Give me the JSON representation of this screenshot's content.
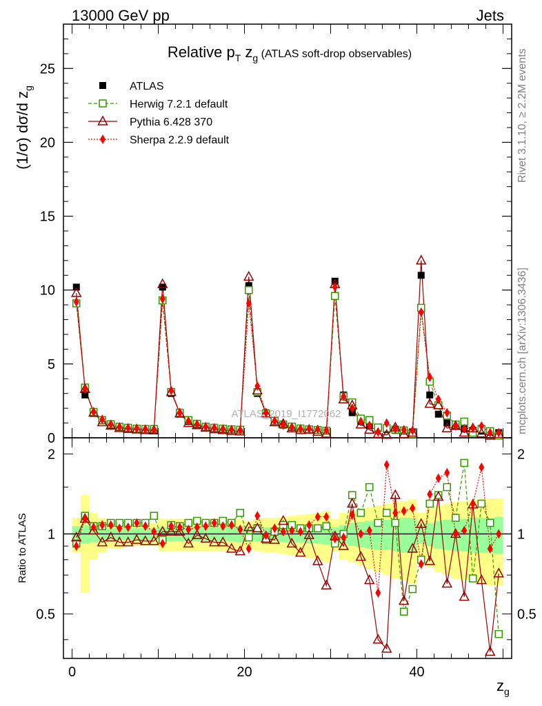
{
  "header": {
    "left": "13000 GeV pp",
    "right": "Jets"
  },
  "side_text": {
    "rivet": "Rivet 3.1.10, ≥ 2.2M events",
    "mcplots": "mcplots.cern.ch [arXiv:1306.3436]"
  },
  "watermark": "ATLAS_2019_I1772062",
  "colors": {
    "atlas": "#000000",
    "herwig": "#339900",
    "pythia": "#990000",
    "sherpa": "#ff0000",
    "band_inner": "#99ff99",
    "band_outer": "#ffff88"
  },
  "chart_data": [
    {
      "type": "scatter",
      "title_parts": {
        "main": "Relative p",
        "sub": "T",
        "mid": " z",
        "sub2": "g",
        "tail": " (ATLAS soft-drop observables)"
      },
      "ylabel": "(1/σ) dσ/d z",
      "ylabel_sub": "g",
      "xlim": [
        -1,
        51
      ],
      "ylim": [
        0,
        28
      ],
      "yticks": [
        0,
        5,
        10,
        15,
        20,
        25
      ],
      "grid": false,
      "legend_position": "top-left",
      "x": [
        0.5,
        1.5,
        2.5,
        3.5,
        4.5,
        5.5,
        6.5,
        7.5,
        8.5,
        9.5,
        10.5,
        11.5,
        12.5,
        13.5,
        14.5,
        15.5,
        16.5,
        17.5,
        18.5,
        19.5,
        20.5,
        21.5,
        22.5,
        23.5,
        24.5,
        25.5,
        26.5,
        27.5,
        28.5,
        29.5,
        30.5,
        31.5,
        32.5,
        33.5,
        34.5,
        35.5,
        36.5,
        37.5,
        38.5,
        39.5,
        40.5,
        41.5,
        42.5,
        43.5,
        44.5,
        45.5,
        46.5,
        47.5,
        48.5,
        49.5
      ],
      "series": [
        {
          "name": "ATLAS",
          "style": "filled-square",
          "values": [
            10.2,
            2.9,
            1.65,
            1.15,
            0.85,
            0.7,
            0.63,
            0.58,
            0.55,
            0.52,
            10.2,
            3.0,
            1.6,
            1.1,
            0.85,
            0.7,
            0.62,
            0.56,
            0.52,
            0.5,
            10.3,
            3.0,
            1.7,
            1.1,
            0.85,
            0.7,
            0.6,
            0.55,
            0.5,
            0.45,
            10.6,
            2.9,
            1.7,
            1.1,
            0.82,
            0.65,
            0.55,
            0.5,
            0.45,
            0.4,
            11.0,
            2.9,
            1.6,
            1.0,
            0.8,
            0.6,
            0.5,
            0.45,
            0.4,
            0.35
          ]
        },
        {
          "name": "Herwig 7.2.1 default",
          "style": "open-square-dashed",
          "values": [
            9.1,
            3.4,
            1.75,
            1.2,
            0.92,
            0.75,
            0.68,
            0.62,
            0.6,
            0.6,
            9.3,
            3.1,
            1.7,
            1.2,
            0.95,
            0.75,
            0.68,
            0.62,
            0.57,
            0.55,
            10.0,
            3.1,
            1.65,
            1.15,
            0.9,
            0.76,
            0.63,
            0.57,
            0.53,
            0.48,
            9.6,
            2.8,
            2.4,
            1.3,
            1.2,
            0.7,
            0.65,
            0.55,
            0.5,
            0.25,
            8.8,
            3.8,
            2.2,
            1.5,
            0.9,
            1.1,
            0.34,
            0.6,
            0.45,
            0.15
          ]
        },
        {
          "name": "Pythia 6.428 370",
          "style": "open-triangle-solid",
          "values": [
            9.8,
            3.3,
            1.7,
            1.05,
            0.82,
            0.66,
            0.6,
            0.56,
            0.52,
            0.5,
            10.4,
            3.1,
            1.65,
            1.0,
            0.85,
            0.68,
            0.58,
            0.52,
            0.46,
            0.43,
            10.9,
            3.2,
            1.65,
            1.05,
            0.95,
            0.64,
            0.52,
            0.55,
            0.4,
            0.28,
            10.4,
            2.6,
            2.2,
            0.9,
            0.55,
            0.26,
            0.2,
            0.7,
            0.25,
            0.35,
            12.0,
            2.3,
            2.2,
            0.65,
            0.8,
            0.35,
            0.64,
            0.3,
            0.14,
            0.25
          ]
        },
        {
          "name": "Sherpa 2.2.9 default",
          "style": "filled-diamond-dotted",
          "values": [
            9.2,
            3.3,
            1.75,
            1.25,
            0.92,
            0.74,
            0.67,
            0.64,
            0.59,
            0.53,
            9.4,
            3.2,
            1.7,
            1.14,
            0.9,
            0.75,
            0.68,
            0.6,
            0.56,
            0.52,
            9.1,
            3.5,
            1.68,
            1.15,
            0.87,
            0.72,
            0.61,
            0.6,
            0.58,
            0.52,
            10.2,
            2.8,
            2.0,
            1.1,
            0.84,
            0.4,
            1.0,
            0.6,
            0.55,
            0.5,
            8.5,
            4.1,
            2.6,
            1.7,
            0.8,
            0.62,
            0.65,
            0.8,
            0.35,
            0.35
          ]
        }
      ]
    },
    {
      "type": "scatter",
      "ylabel": "Ratio to ATLAS",
      "xlabel": "z",
      "xlabel_sub": "g",
      "xlim": [
        -1,
        51
      ],
      "ylim": [
        0.34,
        2.3
      ],
      "scale": "log",
      "yticks": [
        0.5,
        1,
        2
      ],
      "xticks": [
        0,
        20,
        40
      ],
      "reference_line": 1,
      "band_inner_half_width": [
        0.07,
        0.08,
        0.07,
        0.06,
        0.05,
        0.05,
        0.05,
        0.05,
        0.05,
        0.05,
        0.06,
        0.06,
        0.06,
        0.06,
        0.06,
        0.06,
        0.06,
        0.06,
        0.06,
        0.07,
        0.05,
        0.06,
        0.06,
        0.06,
        0.07,
        0.07,
        0.07,
        0.08,
        0.08,
        0.09,
        0.06,
        0.08,
        0.1,
        0.11,
        0.12,
        0.13,
        0.13,
        0.14,
        0.15,
        0.15,
        0.08,
        0.1,
        0.12,
        0.13,
        0.14,
        0.14,
        0.15,
        0.15,
        0.15,
        0.16
      ],
      "band_outer_half_width": [
        0.15,
        0.4,
        0.2,
        0.15,
        0.12,
        0.12,
        0.1,
        0.1,
        0.1,
        0.1,
        0.14,
        0.14,
        0.14,
        0.14,
        0.14,
        0.14,
        0.14,
        0.14,
        0.14,
        0.14,
        0.12,
        0.14,
        0.15,
        0.15,
        0.16,
        0.17,
        0.18,
        0.19,
        0.2,
        0.22,
        0.14,
        0.2,
        0.22,
        0.24,
        0.26,
        0.28,
        0.3,
        0.32,
        0.33,
        0.35,
        0.2,
        0.25,
        0.28,
        0.3,
        0.32,
        0.33,
        0.34,
        0.35,
        0.36,
        0.36
      ],
      "series": [
        {
          "name": "Herwig 7.2.1 default",
          "values": [
            0.92,
            1.17,
            1.07,
            1.07,
            1.1,
            1.1,
            1.1,
            1.1,
            1.1,
            1.17,
            0.95,
            1.08,
            1.07,
            1.1,
            1.12,
            1.1,
            1.1,
            1.12,
            1.1,
            1.2,
            0.97,
            1.05,
            0.95,
            1.02,
            1.08,
            1.08,
            1.05,
            1.05,
            1.05,
            1.07,
            0.92,
            1.0,
            1.4,
            1.2,
            1.5,
            1.1,
            1.2,
            1.1,
            0.51,
            0.62,
            0.8,
            1.3,
            1.4,
            1.5,
            1.15,
            1.85,
            0.68,
            1.3,
            1.1,
            0.42
          ]
        },
        {
          "name": "Pythia 6.428 370",
          "values": [
            0.97,
            1.14,
            1.03,
            0.93,
            0.97,
            0.93,
            0.93,
            0.95,
            0.94,
            0.94,
            1.02,
            1.02,
            1.02,
            0.92,
            0.99,
            0.96,
            0.93,
            0.93,
            0.88,
            0.86,
            1.06,
            1.05,
            0.96,
            0.95,
            1.12,
            0.92,
            0.85,
            0.99,
            0.79,
            0.64,
            0.98,
            0.9,
            1.3,
            0.82,
            0.67,
            0.4,
            0.37,
            1.4,
            0.56,
            0.88,
            1.09,
            0.79,
            1.38,
            0.65,
            1.0,
            0.58,
            1.29,
            0.67,
            0.36,
            0.71
          ]
        },
        {
          "name": "Sherpa 2.2.9 default",
          "values": [
            0.9,
            1.14,
            1.06,
            1.08,
            1.08,
            1.05,
            1.06,
            1.1,
            1.07,
            1.02,
            0.92,
            1.07,
            1.06,
            1.04,
            1.06,
            1.07,
            1.1,
            1.07,
            1.08,
            1.04,
            0.88,
            1.17,
            0.99,
            1.05,
            1.02,
            1.03,
            1.02,
            1.08,
            1.16,
            1.16,
            0.96,
            0.97,
            1.18,
            1.0,
            1.03,
            0.6,
            1.82,
            1.2,
            1.22,
            1.25,
            0.77,
            1.41,
            1.62,
            1.7,
            1.0,
            1.03,
            1.3,
            1.78,
            0.88,
            1.0
          ]
        }
      ]
    }
  ]
}
